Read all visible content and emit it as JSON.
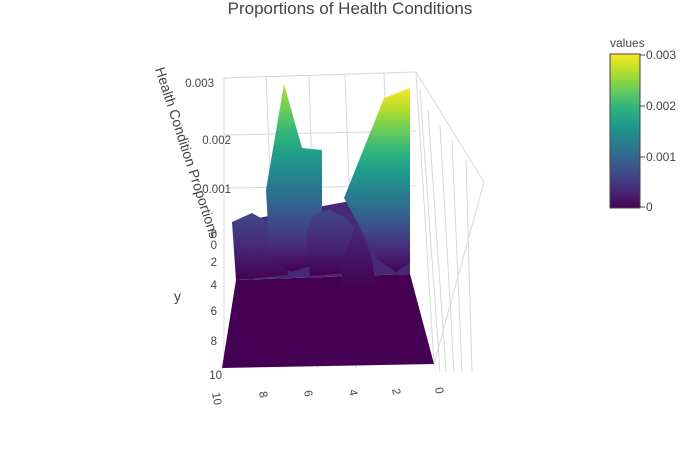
{
  "chart_data": {
    "type": "surface",
    "title": "Proportions of Health Conditions",
    "xlabel": "",
    "ylabel": "y",
    "zlabel": "Health Condition Proportions",
    "x_ticks": [
      "0",
      "2",
      "4",
      "6",
      "8",
      "10"
    ],
    "y_ticks": [
      "0",
      "2",
      "4",
      "6",
      "8",
      "10"
    ],
    "z_ticks": [
      "0",
      "0.001",
      "0.002",
      "0.003"
    ],
    "zlim": [
      0,
      0.003
    ],
    "colorscale": "Viridis",
    "colorbar": {
      "title": "values",
      "ticks": [
        "0",
        "0.001",
        "0.002",
        "0.003"
      ],
      "stops": [
        "#440154",
        "#482878",
        "#3e4989",
        "#31688e",
        "#26828e",
        "#1f9e89",
        "#35b779",
        "#6ece58",
        "#b5de2b",
        "#fde725"
      ]
    },
    "peaks": [
      {
        "x": 2.0,
        "y": 0.0,
        "value": 0.0029
      },
      {
        "x": 6.0,
        "y": 0.0,
        "value": 0.0028
      },
      {
        "x": 4.5,
        "y": 0.5,
        "value": 0.0021
      },
      {
        "x": 8.5,
        "y": 0.0,
        "value": 0.0006
      },
      {
        "x": 5.0,
        "y": 0.0,
        "value": 0.0005
      },
      {
        "x": 3.5,
        "y": 1.5,
        "value": 0.0004
      }
    ]
  }
}
